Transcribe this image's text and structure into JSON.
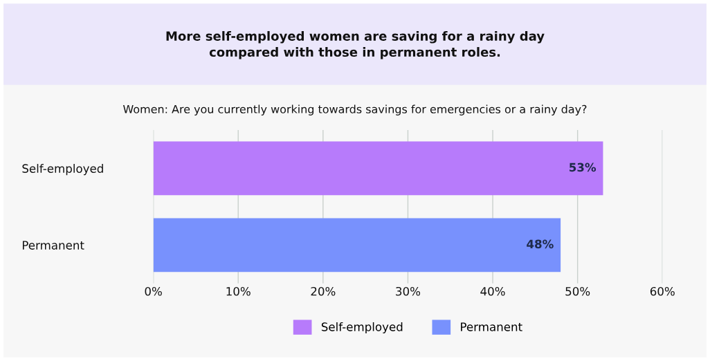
{
  "chart_data": {
    "type": "bar",
    "orientation": "horizontal",
    "title": "More self-employed women are saving for a rainy day\ncompared with those in permanent roles.",
    "subtitle": "Women: Are you currently working towards savings for emergencies or a rainy day?",
    "categories": [
      "Self-employed",
      "Permanent"
    ],
    "series": [
      {
        "name": "Self-employed",
        "color": "#b77bfb",
        "values": [
          53,
          null
        ],
        "value_labels": [
          "53%",
          null
        ]
      },
      {
        "name": "Permanent",
        "color": "#7891fd",
        "values": [
          null,
          48
        ],
        "value_labels": [
          null,
          "48%"
        ]
      }
    ],
    "xlim": [
      0,
      60
    ],
    "xticks": [
      {
        "value": 0,
        "label": "0%"
      },
      {
        "value": 10,
        "label": "10%"
      },
      {
        "value": 20,
        "label": "20%"
      },
      {
        "value": 30,
        "label": "30%"
      },
      {
        "value": 40,
        "label": "40%"
      },
      {
        "value": 50,
        "label": "50%"
      },
      {
        "value": 60,
        "label": "60%"
      }
    ],
    "grid": "x",
    "legend": "bottom"
  }
}
